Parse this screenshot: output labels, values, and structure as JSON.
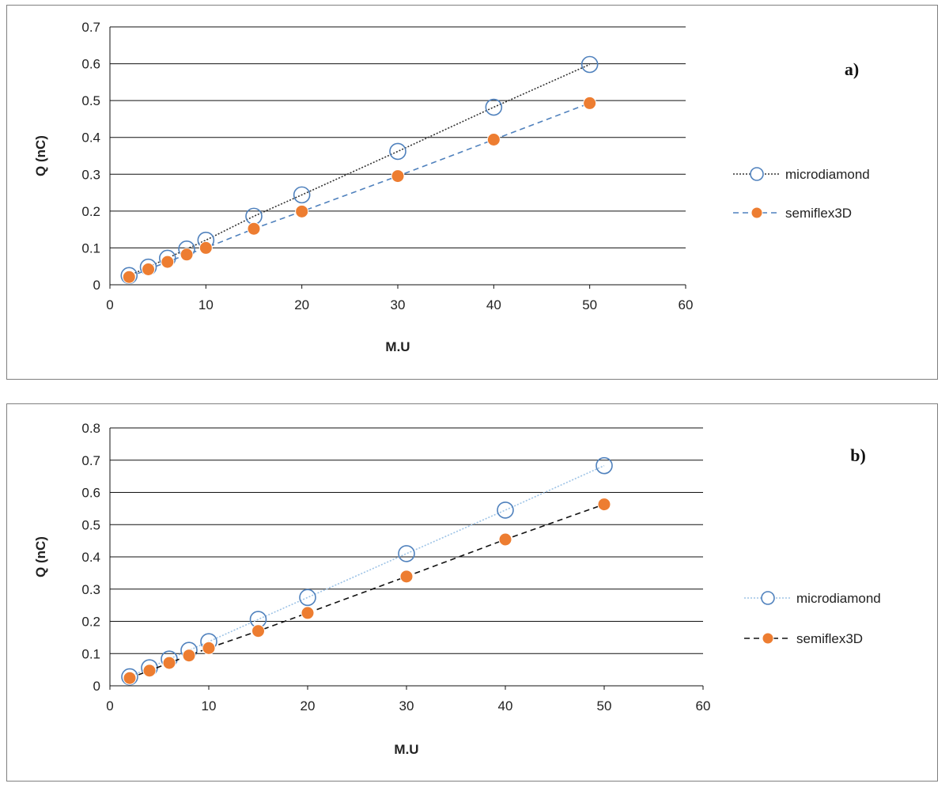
{
  "chart_data": [
    {
      "type": "scatter",
      "panel_label": "a)",
      "xlabel": "M.U",
      "ylabel": "Q (nC)",
      "xlim": [
        0,
        60
      ],
      "ylim": [
        0,
        0.7
      ],
      "x_ticks": [
        "0",
        "10",
        "20",
        "30",
        "40",
        "50",
        "60"
      ],
      "y_ticks": [
        "0",
        "0.1",
        "0.2",
        "0.3",
        "0.4",
        "0.5",
        "0.6",
        "0.7"
      ],
      "grid": "horizontal",
      "legend_position": "right",
      "series": [
        {
          "name": "microdiamond",
          "marker": "open-circle",
          "line": "dotted",
          "line_color": "#333333",
          "marker_color": "#4f81bd",
          "x": [
            2,
            4,
            6,
            8,
            10,
            15,
            20,
            30,
            40,
            50
          ],
          "y": [
            0.025,
            0.048,
            0.072,
            0.097,
            0.121,
            0.186,
            0.244,
            0.362,
            0.482,
            0.598
          ]
        },
        {
          "name": "semiflex3D",
          "marker": "filled-circle",
          "line": "dashed",
          "line_color": "#4f81bd",
          "marker_color": "#ed7d31",
          "x": [
            2,
            4,
            6,
            8,
            10,
            15,
            20,
            30,
            40,
            50
          ],
          "y": [
            0.021,
            0.042,
            0.062,
            0.082,
            0.1,
            0.152,
            0.199,
            0.295,
            0.394,
            0.493
          ]
        }
      ]
    },
    {
      "type": "scatter",
      "panel_label": "b)",
      "xlabel": "M.U",
      "ylabel": "Q (nC)",
      "xlim": [
        0,
        60
      ],
      "ylim": [
        0,
        0.8
      ],
      "x_ticks": [
        "0",
        "10",
        "20",
        "30",
        "40",
        "50",
        "60"
      ],
      "y_ticks": [
        "0",
        "0.1",
        "0.2",
        "0.3",
        "0.4",
        "0.5",
        "0.6",
        "0.7",
        "0.8"
      ],
      "grid": "horizontal",
      "legend_position": "right",
      "series": [
        {
          "name": "microdiamond",
          "marker": "open-circle",
          "line": "dotted",
          "line_color": "#9dc3e6",
          "marker_color": "#4f81bd",
          "x": [
            2,
            4,
            6,
            8,
            10,
            15,
            20,
            30,
            40,
            50
          ],
          "y": [
            0.028,
            0.056,
            0.083,
            0.11,
            0.137,
            0.206,
            0.274,
            0.41,
            0.545,
            0.683
          ]
        },
        {
          "name": "semiflex3D",
          "marker": "filled-circle",
          "line": "dashed",
          "line_color": "#111111",
          "marker_color": "#ed7d31",
          "x": [
            2,
            4,
            6,
            8,
            10,
            15,
            20,
            30,
            40,
            50
          ],
          "y": [
            0.024,
            0.047,
            0.071,
            0.094,
            0.117,
            0.17,
            0.226,
            0.339,
            0.454,
            0.563
          ]
        }
      ]
    }
  ]
}
